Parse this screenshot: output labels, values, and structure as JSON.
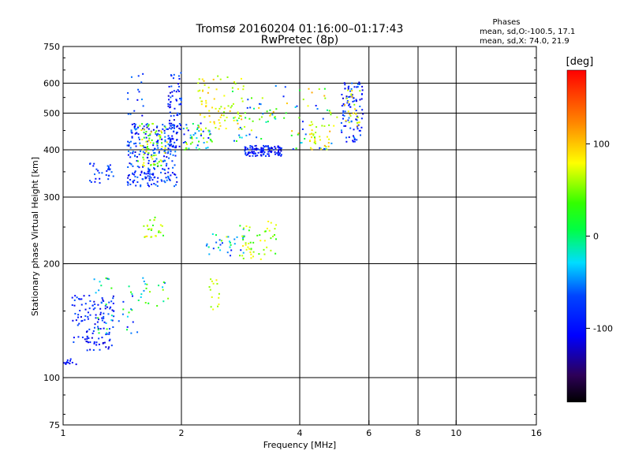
{
  "title": {
    "line1": "Tromsø 20160204 01:16:00–01:17:43",
    "line2": "RwPretec (8p)"
  },
  "stats": {
    "header": "Phases",
    "line_o": "mean, sd,O:-100.5, 17.1",
    "line_x": "mean, sd,X:  74.0, 21.9"
  },
  "colorbar": {
    "title": "[deg]",
    "ticks": [
      "100",
      "0",
      "-100"
    ],
    "tick_values": [
      100,
      0,
      -100
    ],
    "range": [
      -180,
      180
    ]
  },
  "chart_data": {
    "type": "scatter",
    "xlabel": "Frequency [MHz]",
    "ylabel": "Stationary phase Virtual Height [km]",
    "xscale": "log",
    "yscale": "log",
    "xlim": [
      1,
      16
    ],
    "ylim": [
      75,
      750
    ],
    "xticks": [
      1,
      2,
      4,
      6,
      8,
      10,
      16
    ],
    "xtick_labels": [
      "1",
      "2",
      "4",
      "6",
      "8",
      "10",
      "16"
    ],
    "xgrid": [
      2,
      4,
      6,
      8,
      10
    ],
    "yticks": [
      75,
      100,
      200,
      300,
      400,
      500,
      600,
      750
    ],
    "ytick_labels": [
      "75",
      "100",
      "200",
      "300",
      "400",
      "500",
      "600",
      "750"
    ],
    "ygrid": [
      100,
      200,
      300,
      400,
      500,
      600
    ],
    "grid": true,
    "color_dimension": "phase [deg]",
    "clusters": [
      {
        "x": [
          1.0,
          1.08
        ],
        "y": [
          108,
          112
        ],
        "n": 12,
        "phase": [
          -120,
          -95
        ]
      },
      {
        "x": [
          1.05,
          1.35
        ],
        "y": [
          118,
          165
        ],
        "n": 120,
        "phase": [
          -125,
          -80
        ]
      },
      {
        "x": [
          1.2,
          1.55
        ],
        "y": [
          130,
          185
        ],
        "n": 40,
        "phase": [
          -110,
          40
        ]
      },
      {
        "x": [
          1.15,
          1.35
        ],
        "y": [
          325,
          370
        ],
        "n": 30,
        "phase": [
          -115,
          -70
        ]
      },
      {
        "x": [
          1.45,
          1.6
        ],
        "y": [
          480,
          640
        ],
        "n": 15,
        "phase": [
          -115,
          -60
        ]
      },
      {
        "x": [
          1.45,
          1.95
        ],
        "y": [
          320,
          470
        ],
        "n": 260,
        "phase": [
          -125,
          -60
        ]
      },
      {
        "x": [
          1.55,
          1.85
        ],
        "y": [
          360,
          470
        ],
        "n": 70,
        "phase": [
          20,
          120
        ]
      },
      {
        "x": [
          1.85,
          2.0
        ],
        "y": [
          400,
          640
        ],
        "n": 70,
        "phase": [
          -125,
          -70
        ]
      },
      {
        "x": [
          1.6,
          1.8
        ],
        "y": [
          235,
          270
        ],
        "n": 25,
        "phase": [
          20,
          110
        ]
      },
      {
        "x": [
          1.55,
          1.85
        ],
        "y": [
          150,
          185
        ],
        "n": 20,
        "phase": [
          -100,
          100
        ]
      },
      {
        "x": [
          2.0,
          2.4
        ],
        "y": [
          400,
          470
        ],
        "n": 55,
        "phase": [
          -115,
          110
        ]
      },
      {
        "x": [
          2.2,
          2.9
        ],
        "y": [
          450,
          630
        ],
        "n": 80,
        "phase": [
          60,
          130
        ]
      },
      {
        "x": [
          2.3,
          2.7
        ],
        "y": [
          210,
          240
        ],
        "n": 20,
        "phase": [
          -100,
          90
        ]
      },
      {
        "x": [
          2.6,
          2.9
        ],
        "y": [
          205,
          250
        ],
        "n": 14,
        "phase": [
          -110,
          -40
        ]
      },
      {
        "x": [
          2.8,
          3.5
        ],
        "y": [
          205,
          260
        ],
        "n": 50,
        "phase": [
          20,
          110
        ]
      },
      {
        "x": [
          2.9,
          3.6
        ],
        "y": [
          385,
          410
        ],
        "n": 110,
        "phase": [
          -125,
          -80
        ]
      },
      {
        "x": [
          2.7,
          3.5
        ],
        "y": [
          420,
          600
        ],
        "n": 45,
        "phase": [
          -100,
          130
        ]
      },
      {
        "x": [
          2.35,
          2.5
        ],
        "y": [
          150,
          190
        ],
        "n": 14,
        "phase": [
          60,
          110
        ]
      },
      {
        "x": [
          3.6,
          5.0
        ],
        "y": [
          400,
          590
        ],
        "n": 45,
        "phase": [
          -110,
          140
        ]
      },
      {
        "x": [
          4.2,
          4.9
        ],
        "y": [
          400,
          470
        ],
        "n": 35,
        "phase": [
          60,
          130
        ]
      },
      {
        "x": [
          5.1,
          5.8
        ],
        "y": [
          420,
          610
        ],
        "n": 90,
        "phase": [
          -125,
          -60
        ]
      },
      {
        "x": [
          5.2,
          5.7
        ],
        "y": [
          460,
          580
        ],
        "n": 25,
        "phase": [
          60,
          130
        ]
      }
    ]
  }
}
